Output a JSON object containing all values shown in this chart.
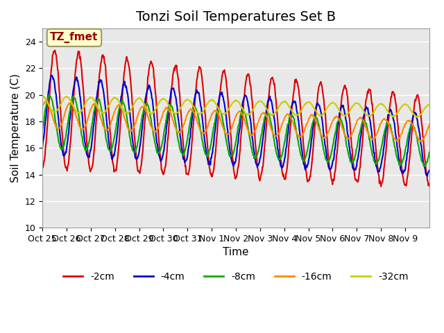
{
  "title": "Tonzi Soil Temperatures Set B",
  "xlabel": "Time",
  "ylabel": "Soil Temperature (C)",
  "ylim": [
    10,
    25
  ],
  "yticks": [
    10,
    12,
    14,
    16,
    18,
    20,
    22,
    24
  ],
  "annotation_text": "TZ_fmet",
  "series_labels": [
    "-2cm",
    "-4cm",
    "-8cm",
    "-16cm",
    "-32cm"
  ],
  "series_colors": [
    "#dd0000",
    "#0000cc",
    "#00aa00",
    "#ff8800",
    "#cccc00"
  ],
  "line_widths": [
    1.5,
    1.5,
    1.5,
    1.5,
    1.5
  ],
  "xtick_labels": [
    "Oct 25",
    "Oct 26",
    "Oct 27",
    "Oct 28",
    "Oct 29",
    "Oct 30",
    "Oct 31",
    "Nov 1",
    "Nov 2",
    "Nov 3",
    "Nov 4",
    "Nov 5",
    "Nov 6",
    "Nov 7",
    "Nov 8",
    "Nov 9"
  ],
  "n_days": 16,
  "samples_per_day": 48,
  "background_color": "#ffffff",
  "plot_bg_color": "#e8e8e8",
  "grid_color": "#ffffff",
  "title_fontsize": 14,
  "axis_label_fontsize": 11,
  "tick_fontsize": 9,
  "legend_fontsize": 10
}
